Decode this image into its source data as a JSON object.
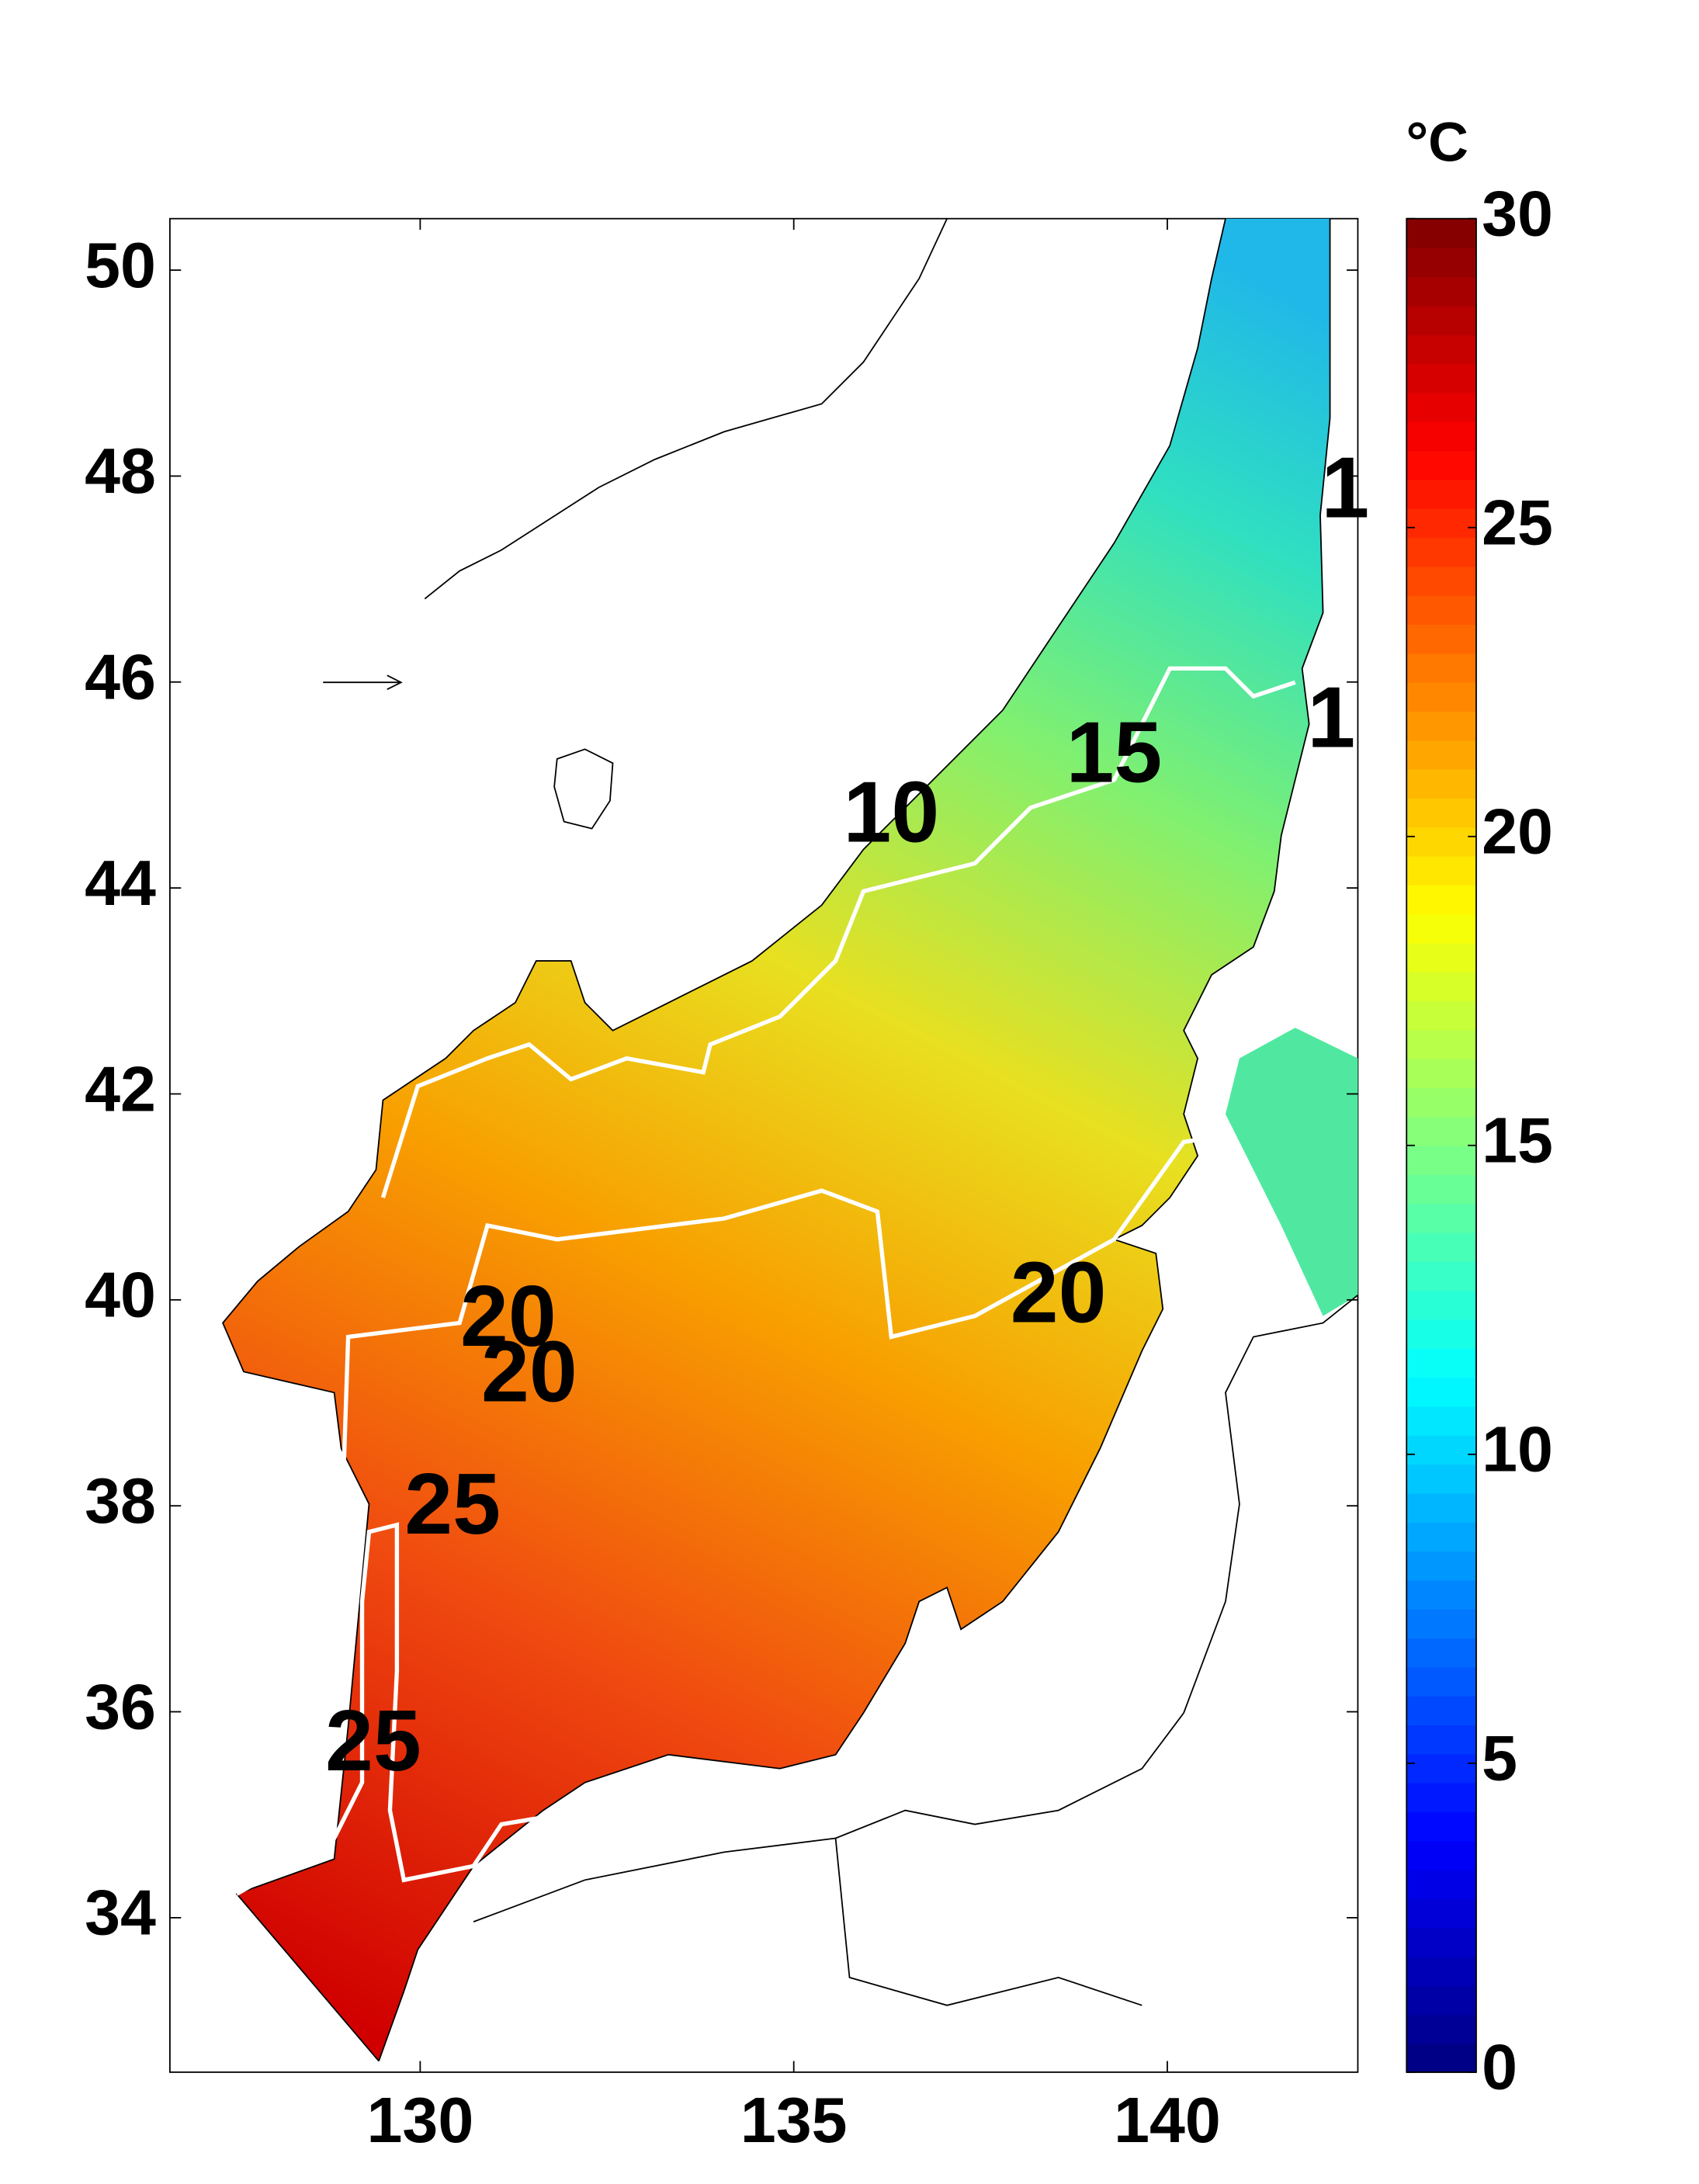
{
  "chart_data": {
    "type": "map",
    "xlim": [
      126.65,
      142.55
    ],
    "xticks": [
      130,
      135,
      140
    ],
    "ylim": [
      32.5,
      50.5
    ],
    "yticks": [
      34,
      36,
      38,
      40,
      42,
      44,
      46,
      48,
      50
    ],
    "contour_labels": [
      1,
      1,
      15,
      10,
      20,
      20,
      20,
      25,
      25
    ],
    "colorbar": {
      "label": "°C",
      "lim": [
        0,
        30
      ],
      "ticks": [
        0,
        5,
        10,
        15,
        20,
        25,
        30
      ],
      "colormap": "jet"
    }
  }
}
